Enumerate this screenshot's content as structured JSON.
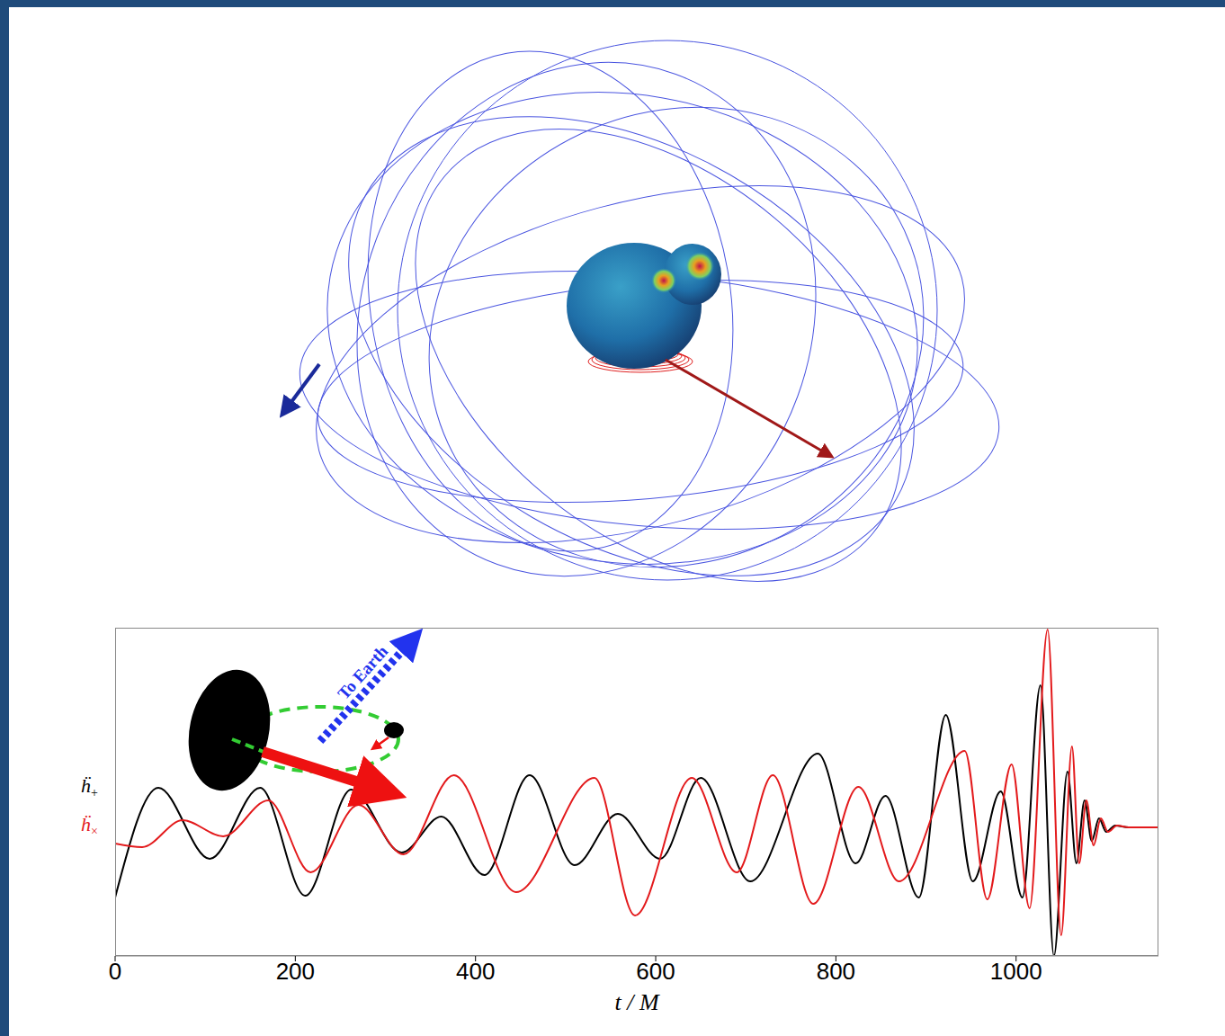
{
  "chart_data": {
    "type": "line",
    "x_label": "t / M",
    "xlim": [
      0,
      1158
    ],
    "xticks": [
      0,
      200,
      400,
      600,
      800,
      1000
    ],
    "ylim": [
      -1.43,
      2.22
    ],
    "tick_labels": "x",
    "annotations": [
      "To Earth"
    ],
    "series": [
      {
        "name": "ḧ+",
        "color": "#000000",
        "x": [
          0,
          48,
          105,
          161,
          211,
          262,
          318,
          362,
          410,
          460,
          510,
          558,
          605,
          650,
          705,
          780,
          822,
          855,
          892,
          922,
          952,
          983,
          1007,
          1027,
          1042,
          1057,
          1067,
          1076,
          1084,
          1092,
          1100,
          1110,
          1125,
          1158
        ],
        "values": [
          -0.78,
          0.44,
          -0.35,
          0.44,
          -0.76,
          0.42,
          -0.28,
          0.12,
          -0.53,
          0.58,
          -0.42,
          0.15,
          -0.35,
          0.55,
          -0.6,
          0.82,
          -0.4,
          0.35,
          -0.78,
          1.25,
          -0.6,
          0.4,
          -0.78,
          1.58,
          -1.43,
          0.62,
          -0.4,
          0.3,
          -0.15,
          0.1,
          -0.05,
          0.02,
          0,
          0
        ]
      },
      {
        "name": "ḧ×",
        "color": "#e31a1c",
        "x": [
          0,
          30,
          75,
          120,
          170,
          217,
          270,
          320,
          376,
          445,
          532,
          577,
          640,
          690,
          730,
          775,
          825,
          870,
          943,
          968,
          995,
          1015,
          1035,
          1050,
          1062,
          1070,
          1078,
          1086,
          1094,
          1102,
          1112,
          1125,
          1158
        ],
        "values": [
          -0.18,
          -0.22,
          0.08,
          -0.1,
          0.3,
          -0.5,
          0.25,
          -0.3,
          0.58,
          -0.72,
          0.55,
          -0.98,
          0.55,
          -0.5,
          0.58,
          -0.85,
          0.45,
          -0.6,
          0.85,
          -0.8,
          0.7,
          -0.9,
          2.2,
          -1.2,
          0.9,
          -0.4,
          0.3,
          -0.2,
          0.1,
          -0.05,
          0.02,
          0,
          0
        ]
      }
    ]
  }
}
